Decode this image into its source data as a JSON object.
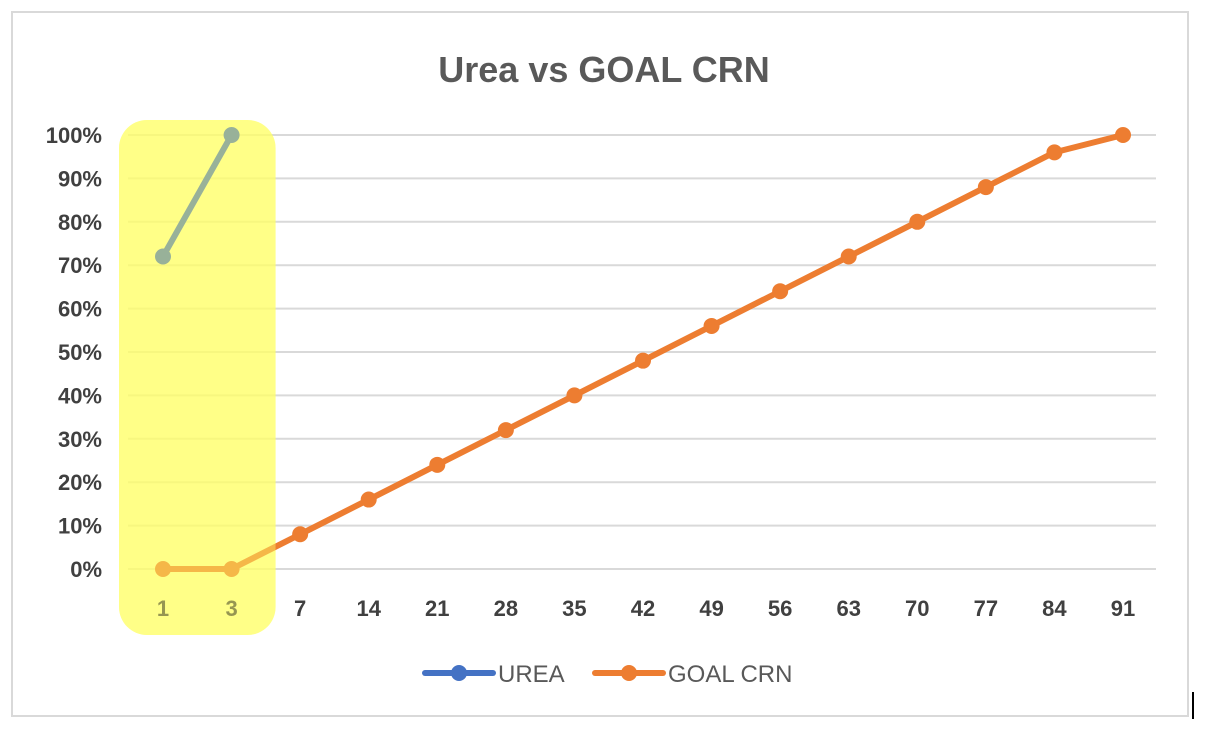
{
  "chart_data": {
    "type": "line",
    "title": "Urea vs GOAL CRN",
    "xlabel": "",
    "ylabel": "",
    "categories": [
      "1",
      "3",
      "7",
      "14",
      "21",
      "28",
      "35",
      "42",
      "49",
      "56",
      "63",
      "70",
      "77",
      "84",
      "91"
    ],
    "y_tick_labels": [
      "0%",
      "10%",
      "20%",
      "30%",
      "40%",
      "50%",
      "60%",
      "70%",
      "80%",
      "90%",
      "100%"
    ],
    "ylim": [
      0,
      100
    ],
    "y_unit": "percent",
    "grid": "horizontal",
    "legend_position": "bottom",
    "series": [
      {
        "name": "UREA",
        "color": "#4472c4",
        "values": [
          72,
          100,
          null,
          null,
          null,
          null,
          null,
          null,
          null,
          null,
          null,
          null,
          null,
          null,
          null
        ]
      },
      {
        "name": "GOAL CRN",
        "color": "#ed7d31",
        "values": [
          0,
          0,
          8,
          16,
          24,
          32,
          40,
          48,
          56,
          64,
          72,
          80,
          88,
          96,
          100
        ]
      }
    ],
    "highlight": {
      "categories": [
        "1",
        "3"
      ],
      "color": "#ffff66",
      "opacity": 0.6
    }
  }
}
